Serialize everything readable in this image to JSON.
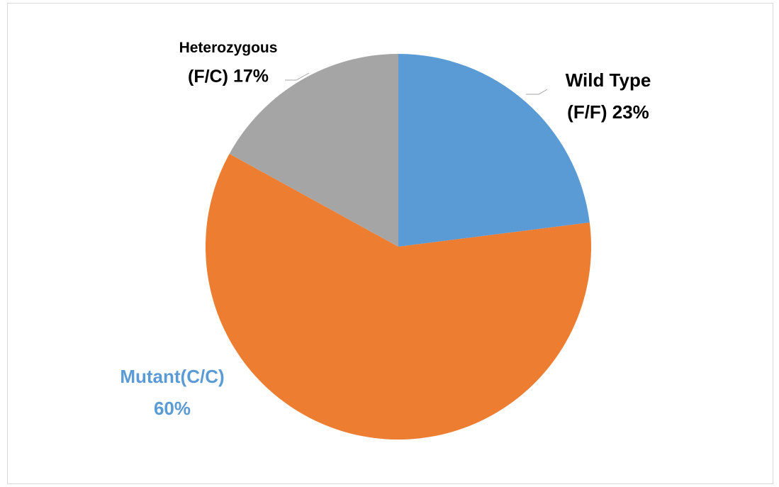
{
  "chart_data": {
    "type": "pie",
    "categories": [
      "Wild Type (F/F)",
      "Mutant(C/C)",
      "Heterozygous (F/C)"
    ],
    "values": [
      23,
      60,
      17
    ],
    "value_labels": [
      "23%",
      "60%",
      "17%"
    ],
    "colors": [
      "#5b9bd5",
      "#ed7d31",
      "#a5a5a5"
    ],
    "label_colors": [
      "#000000",
      "#5b9bd5",
      "#000000"
    ]
  }
}
